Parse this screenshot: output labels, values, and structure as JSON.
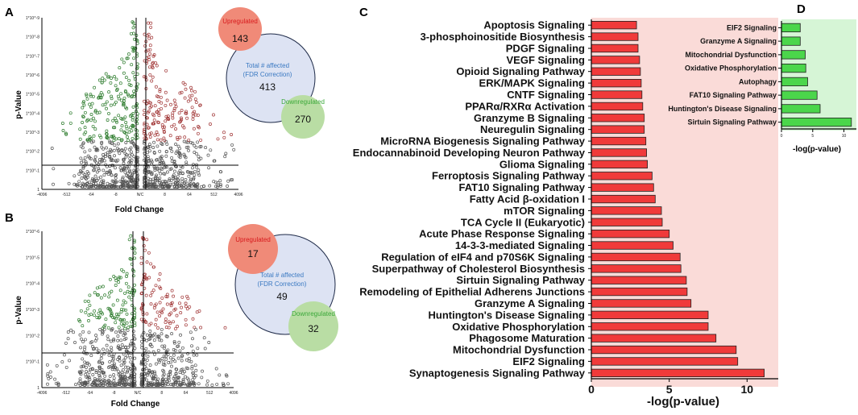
{
  "panels": {
    "a": {
      "label": "A",
      "venn": {
        "up_label": "Upregulated",
        "up_value": "143",
        "total_label_1": "Total # affected",
        "total_label_2": "(FDR Correction)",
        "total_value": "413",
        "down_label": "Downregulated",
        "down_value": "270"
      }
    },
    "b": {
      "label": "B",
      "venn": {
        "up_label": "Upregulated",
        "up_value": "17",
        "total_label_1": "Total # affected",
        "total_label_2": "(FDR Correction)",
        "total_value": "49",
        "down_label": "Downregulated",
        "down_value": "32"
      }
    },
    "c": {
      "label": "C"
    },
    "d": {
      "label": "D"
    }
  },
  "colors": {
    "up_circle": "#f08a78",
    "up_text": "#d7191c",
    "total_circle": "#dde3f3",
    "total_text": "#3a79c2",
    "down_circle": "#b9dda4",
    "down_text": "#3aa839",
    "bar_red": "#f03a3a",
    "bar_green": "#4bd64b",
    "bg_pink": "#fadbd8",
    "bg_green": "#d6f5d6"
  },
  "chart_data": [
    {
      "id": "volcano-a",
      "type": "scatter",
      "title": "",
      "xlabel": "Fold Change",
      "ylabel": "p-Value",
      "x_ticks": [
        "-4096",
        "-512",
        "-64",
        "-8",
        "N/C",
        "8",
        "64",
        "512",
        "4096"
      ],
      "y_ticks": [
        "1*10^-9",
        "1*10^-8",
        "1*10^-7",
        "1*10^-6",
        "1*10^-5",
        "1*10^-4",
        "1*10^-3",
        "1*10^-2",
        "1*10^-1",
        "1"
      ]
    },
    {
      "id": "volcano-b",
      "type": "scatter",
      "title": "",
      "xlabel": "Fold Change",
      "ylabel": "p-Value",
      "x_ticks": [
        "-4096",
        "-512",
        "-64",
        "-8",
        "N/C",
        "8",
        "64",
        "512",
        "4096"
      ],
      "y_ticks": [
        "1*10^-6",
        "1*10^-5",
        "1*10^-4",
        "1*10^-3",
        "1*10^-2",
        "1*10^-1",
        "1"
      ]
    },
    {
      "id": "bar-c",
      "type": "bar",
      "orientation": "horizontal",
      "xlabel": "-log(p-value)",
      "xlim": [
        0,
        12
      ],
      "x_ticks": [
        "0",
        "5",
        "10"
      ],
      "categories": [
        "Apoptosis Signaling",
        "3-phosphoinositide Biosynthesis",
        "PDGF Signaling",
        "VEGF Signaling",
        "Opioid Signaling Pathway",
        "ERK/MAPK Signaling",
        "CNTF Signaling",
        "PPARα/RXRα Activation",
        "Granzyme B Signaling",
        "Neuregulin Signaling",
        "MicroRNA Biogenesis Signaling Pathway",
        "Endocannabinoid Developing Neuron Pathway",
        "Glioma Signaling",
        "Ferroptosis Signaling Pathway",
        "FAT10 Signaling Pathway",
        "Fatty Acid β-oxidation I",
        "mTOR Signaling",
        "TCA Cycle II (Eukaryotic)",
        "Acute Phase Response Signaling",
        "14-3-3-mediated Signaling",
        "Regulation of eIF4 and p70S6K Signaling",
        "Superpathway of Cholesterol Biosynthesis",
        "Sirtuin Signaling Pathway",
        "Remodeling of Epithelial Adherens Junctions",
        "Granzyme A Signaling",
        "Huntington's Disease Signaling",
        "Oxidative Phosphorylation",
        "Phagosome Maturation",
        "Mitochondrial Dysfunction",
        "EIF2 Signaling",
        "Synaptogenesis Signaling Pathway"
      ],
      "values": [
        2.9,
        3.0,
        3.0,
        3.1,
        3.15,
        3.2,
        3.25,
        3.3,
        3.4,
        3.4,
        3.5,
        3.55,
        3.6,
        3.9,
        4.0,
        4.1,
        4.5,
        4.55,
        5.0,
        5.25,
        5.7,
        5.75,
        6.1,
        6.15,
        6.4,
        7.5,
        7.5,
        8.0,
        9.3,
        9.4,
        11.1
      ]
    },
    {
      "id": "bar-d",
      "type": "bar",
      "orientation": "horizontal",
      "xlabel": "-log(p-value)",
      "xlim": [
        0,
        12
      ],
      "x_ticks": [
        "0",
        "5",
        "10"
      ],
      "categories": [
        "EIF2 Signaling",
        "Granzyme A Signaling",
        "Mitochondrial Dysfunction",
        "Oxidative Phosphorylation",
        "Autophagy",
        "FAT10 Signaling Pathway",
        "Huntington's Disease Signaling",
        "Sirtuin Signaling Pathway"
      ],
      "values": [
        3.0,
        3.0,
        3.8,
        3.9,
        4.2,
        5.7,
        6.2,
        11.2
      ]
    }
  ]
}
